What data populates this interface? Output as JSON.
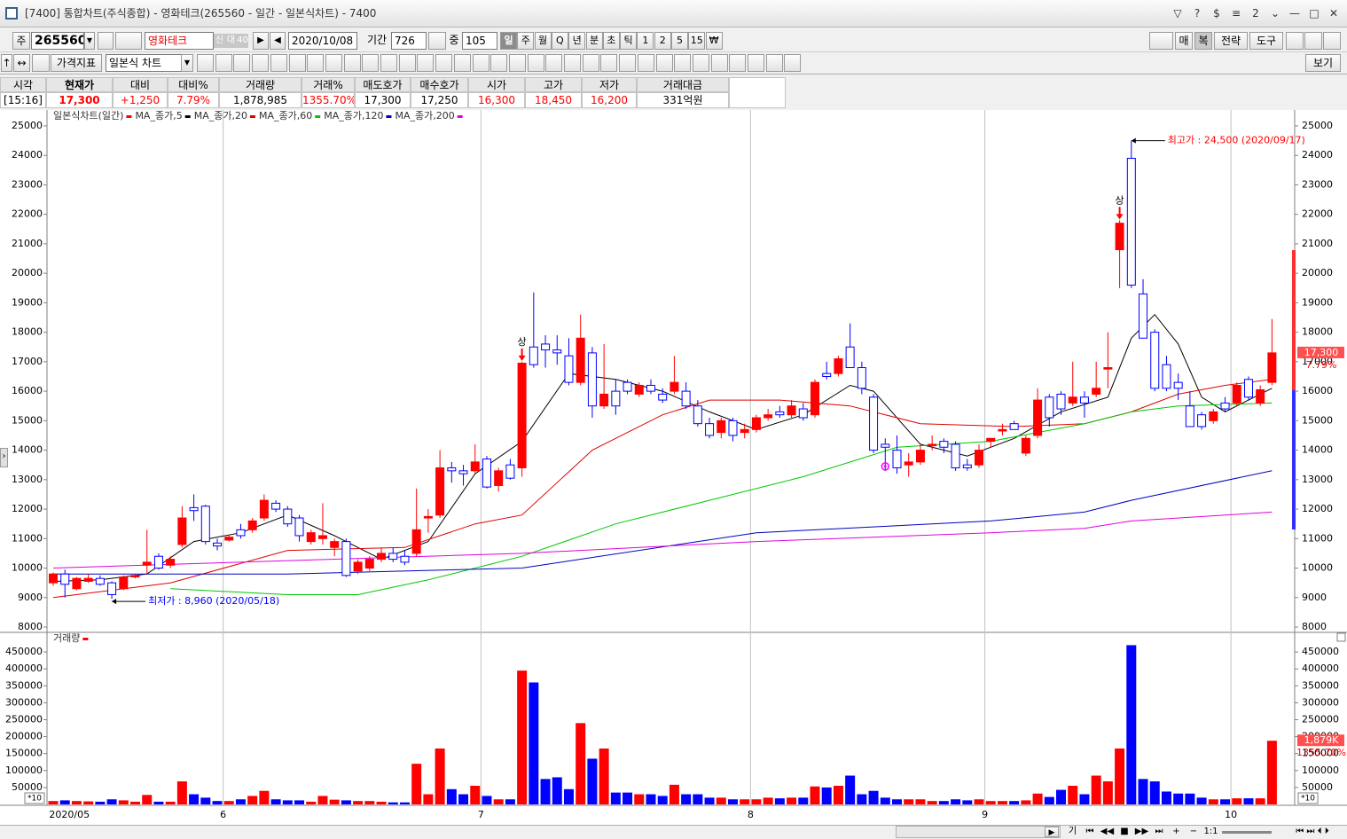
{
  "window": {
    "title": "[7400]  통합차트(주식종합) - 영화테크(265560 - 일간 - 일본식차트) - 7400",
    "buttons": [
      "▽",
      "?",
      "$",
      "≡",
      "2",
      "⌄",
      "—",
      "□",
      "✕"
    ]
  },
  "toolbar": {
    "code_label": "주",
    "code": "265560",
    "name": "영화테크",
    "badges": [
      "신",
      "대",
      "40"
    ],
    "date": "2020/10/08",
    "period_label": "기간",
    "period": "726",
    "count_label": "중",
    "count": "105",
    "intervals": [
      "일",
      "주",
      "월",
      "Q",
      "년",
      "분",
      "초",
      "틱",
      "1",
      "2",
      "5",
      "15",
      "₩"
    ],
    "right_buttons": [
      "매",
      "복",
      "전략",
      "도구"
    ]
  },
  "toolbar2": {
    "indicator": "가격지표",
    "chart_type": "일본식 차트",
    "view": "보기"
  },
  "quote": {
    "headers": [
      "시각",
      "현재가",
      "대비",
      "대비%",
      "거래량",
      "거래%",
      "매도호가",
      "매수호가",
      "시가",
      "고가",
      "저가",
      "거래대금"
    ],
    "values": [
      "[15:16]",
      "17,300",
      "+1,250",
      "7.79%",
      "1,878,985",
      "1355.70%",
      "17,300",
      "17,250",
      "16,300",
      "18,450",
      "16,200",
      "331억원"
    ],
    "colors": [
      "#000000",
      "#ff0000",
      "#ff0000",
      "#ff0000",
      "#000000",
      "#ff0000",
      "#000000",
      "#000000",
      "#ff0000",
      "#ff0000",
      "#ff0000",
      "#000000"
    ]
  },
  "chart_data": {
    "type": "candlestick",
    "title": "일본식차트(일간)",
    "up_color": "#ff0000",
    "down_color": "#0000ff",
    "open": [
      9500,
      9800,
      9300,
      9550,
      9650,
      9500,
      9300,
      9700,
      10100,
      10400,
      10100,
      10800,
      12050,
      12100,
      10850,
      10950,
      11300,
      11300,
      11700,
      12200,
      12000,
      11700,
      10900,
      11000,
      10700,
      10900,
      9900,
      10000,
      10300,
      10500,
      10400,
      10500,
      11700,
      11800,
      13400,
      13300,
      13300,
      13700,
      12800,
      13500,
      13400,
      17500,
      17600,
      17400,
      17200,
      16300,
      17300,
      15500,
      16000,
      16300,
      15900,
      16200,
      15900,
      16000,
      16000,
      15500,
      14900,
      14600,
      15000,
      14600,
      14700,
      15100,
      15300,
      15200,
      15400,
      15200,
      16600,
      16600,
      17500,
      16800,
      15800,
      14200,
      14000,
      13500,
      13600,
      14150,
      14300,
      14200,
      13500,
      13500,
      14300,
      14650,
      14900,
      13900,
      14500,
      15800,
      15900,
      15600,
      15800,
      15900,
      16750,
      20800,
      23900,
      19300,
      18000,
      16900,
      16300,
      15500,
      15200,
      15000,
      15600,
      15600,
      16400,
      15600,
      16300
    ],
    "high": [
      9850,
      9950,
      9700,
      9800,
      9750,
      9550,
      9750,
      9800,
      11300,
      10500,
      10400,
      12100,
      12500,
      12150,
      11000,
      11100,
      11500,
      11700,
      12500,
      12300,
      12100,
      11800,
      11300,
      12200,
      11000,
      11000,
      10300,
      10400,
      10700,
      10700,
      10600,
      12700,
      12000,
      14000,
      13600,
      13500,
      14200,
      13800,
      13400,
      13700,
      17000,
      19350,
      17900,
      17900,
      17800,
      18600,
      17500,
      17600,
      16400,
      16400,
      16300,
      16400,
      16100,
      17200,
      16300,
      15700,
      15100,
      15100,
      15100,
      14900,
      15200,
      15400,
      15500,
      15700,
      15600,
      16400,
      17000,
      17200,
      18300,
      17000,
      15900,
      14400,
      14500,
      13900,
      14200,
      14500,
      14400,
      14300,
      13700,
      14200,
      14400,
      14900,
      15000,
      14500,
      16100,
      15900,
      16000,
      17000,
      16000,
      17000,
      18000,
      21800,
      24500,
      19800,
      18100,
      17200,
      16600,
      16000,
      15300,
      15400,
      15800,
      16300,
      16500,
      16200,
      18450
    ],
    "low": [
      9400,
      9000,
      9250,
      9500,
      9400,
      8960,
      9250,
      9650,
      9800,
      9950,
      10000,
      10700,
      11600,
      10800,
      10600,
      10900,
      11000,
      11200,
      11600,
      11900,
      11400,
      10900,
      10800,
      10800,
      10400,
      9700,
      9800,
      9900,
      10200,
      10200,
      10100,
      10400,
      11200,
      11700,
      12900,
      12800,
      13200,
      12700,
      12600,
      13000,
      13100,
      16800,
      16800,
      16900,
      16200,
      16200,
      15100,
      15400,
      15200,
      15900,
      15800,
      15900,
      15600,
      15900,
      15400,
      14800,
      14400,
      14400,
      14300,
      14400,
      14600,
      15000,
      15100,
      15100,
      15000,
      15100,
      16400,
      16500,
      16800,
      15900,
      13900,
      13300,
      13200,
      13100,
      13500,
      14000,
      13900,
      13300,
      13300,
      13400,
      14100,
      14500,
      14700,
      13800,
      14400,
      14800,
      15200,
      15500,
      15100,
      15800,
      16100,
      19500,
      19500,
      17800,
      16000,
      16000,
      15700,
      14800,
      14700,
      14900,
      15300,
      15500,
      15700,
      15500,
      16200
    ],
    "close": [
      9800,
      9450,
      9650,
      9650,
      9450,
      9100,
      9700,
      9750,
      10200,
      10000,
      10300,
      11700,
      11950,
      10900,
      10750,
      11050,
      11100,
      11600,
      12300,
      12000,
      11500,
      11100,
      11200,
      11100,
      10900,
      9750,
      10200,
      10300,
      10500,
      10300,
      10200,
      11300,
      11750,
      13400,
      13300,
      13200,
      13600,
      12750,
      13300,
      13050,
      16950,
      16900,
      17400,
      17300,
      16300,
      17800,
      15500,
      15900,
      15500,
      16000,
      16200,
      16000,
      15700,
      16300,
      15500,
      14900,
      14500,
      15000,
      14500,
      14700,
      15100,
      15200,
      15200,
      15500,
      15100,
      16300,
      16500,
      17100,
      16800,
      16100,
      14000,
      14100,
      13400,
      13600,
      14000,
      14200,
      14100,
      13400,
      13400,
      14000,
      14400,
      14700,
      14700,
      14400,
      15700,
      15100,
      15400,
      15800,
      15600,
      16100,
      16800,
      21700,
      19600,
      17800,
      16100,
      16100,
      16100,
      14800,
      14800,
      15300,
      15400,
      16200,
      15800,
      16050,
      17300
    ],
    "xlim": [
      -0.5,
      104.5
    ],
    "xticks": [
      {
        "value": -0.5,
        "label": "2020/05"
      },
      {
        "value": 14.5,
        "label": "6"
      },
      {
        "value": 36.5,
        "label": "7"
      },
      {
        "value": 59.5,
        "label": "8"
      },
      {
        "value": 79.5,
        "label": "9"
      },
      {
        "value": 100.5,
        "label": "10"
      }
    ],
    "ylim": [
      7850,
      25480
    ],
    "yticks": [
      25000,
      24000,
      23000,
      22000,
      21000,
      20000,
      19000,
      18000,
      17000,
      16000,
      15000,
      14000,
      13000,
      12000,
      11000,
      10000,
      9000,
      8000
    ],
    "moving_averages": [
      {
        "name": "MA_종가,5",
        "color": "#000000",
        "x": [
          0,
          4,
          8,
          12,
          16,
          20,
          24,
          28,
          32,
          36,
          40,
          44,
          48,
          52,
          56,
          60,
          64,
          68,
          70,
          74,
          78,
          82,
          86,
          90,
          92,
          94,
          96,
          98,
          100,
          104
        ],
        "values": [
          9550,
          9600,
          9800,
          10900,
          11200,
          11800,
          11100,
          10300,
          10900,
          13200,
          14300,
          16600,
          16400,
          16000,
          15300,
          14700,
          15200,
          16200,
          16000,
          14200,
          13800,
          14400,
          15300,
          15800,
          17800,
          18600,
          17600,
          15800,
          15300,
          16100
        ]
      },
      {
        "name": "MA_종가,20",
        "color": "#e00000",
        "x": [
          0,
          10,
          20,
          30,
          36,
          40,
          46,
          52,
          56,
          62,
          68,
          74,
          82,
          88,
          92,
          96,
          100,
          104
        ],
        "values": [
          9000,
          9500,
          10600,
          10700,
          11500,
          11800,
          14000,
          15200,
          15700,
          15700,
          15500,
          14900,
          14800,
          14900,
          15300,
          15900,
          16200,
          16400
        ]
      },
      {
        "name": "MA_종가,60",
        "color": "#00c800",
        "x": [
          10,
          20,
          26,
          32,
          40,
          48,
          56,
          64,
          72,
          80,
          88,
          92,
          96,
          104
        ],
        "values": [
          9300,
          9100,
          9100,
          9600,
          10400,
          11500,
          12300,
          13100,
          14100,
          14300,
          14900,
          15300,
          15500,
          15600
        ]
      },
      {
        "name": "MA_종가,120",
        "color": "#0000c0",
        "x": [
          0,
          20,
          40,
          60,
          80,
          88,
          92,
          104
        ],
        "values": [
          9800,
          9800,
          10000,
          11200,
          11600,
          11900,
          12300,
          13300
        ]
      },
      {
        "name": "MA_종가,200",
        "color": "#e000e0",
        "x": [
          0,
          40,
          60,
          80,
          88,
          92,
          104
        ],
        "values": [
          10000,
          10500,
          10900,
          11200,
          11350,
          11600,
          11900
        ]
      }
    ],
    "annotations": [
      {
        "text": "최고가 : 24,500 (2020/09/17)",
        "index": 92,
        "value": 24500,
        "color": "#ff0000"
      },
      {
        "text": "최저가 : 8,960 (2020/05/18)",
        "index": 5,
        "value": 8960,
        "color": "#0000ff"
      },
      {
        "text": "상",
        "index": 40,
        "value": 17000,
        "color": "#ff0000"
      },
      {
        "text": "상",
        "index": 91,
        "value": 21800,
        "color": "#ff0000"
      }
    ],
    "signals": [
      {
        "index": 71,
        "value": 13450,
        "color": "#ff00ff"
      }
    ],
    "last_price_label": "17,300",
    "last_change_label": "7.79%",
    "volume": {
      "title": "거래량",
      "values": [
        10000,
        12000,
        10000,
        9000,
        8000,
        15000,
        12000,
        8000,
        28000,
        8000,
        8000,
        68000,
        30000,
        20000,
        10000,
        10000,
        15000,
        25000,
        40000,
        15000,
        12000,
        12000,
        8000,
        25000,
        14000,
        12000,
        10000,
        10000,
        8000,
        6000,
        6000,
        120000,
        30000,
        165000,
        45000,
        30000,
        55000,
        25000,
        15000,
        15000,
        395000,
        360000,
        75000,
        80000,
        45000,
        240000,
        135000,
        165000,
        35000,
        35000,
        30000,
        30000,
        25000,
        58000,
        30000,
        30000,
        20000,
        20000,
        15000,
        15000,
        15000,
        20000,
        18000,
        20000,
        20000,
        53000,
        50000,
        55000,
        85000,
        30000,
        40000,
        20000,
        15000,
        15000,
        15000,
        10000,
        10000,
        15000,
        12000,
        15000,
        10000,
        10000,
        10000,
        12000,
        32000,
        22000,
        43000,
        55000,
        30000,
        85000,
        68000,
        165000,
        470000,
        75000,
        68000,
        38000,
        32000,
        32000,
        20000,
        15000,
        15000,
        18000,
        18000,
        18000,
        187900
      ],
      "ylim": [
        0,
        500000
      ],
      "yticks": [
        450000,
        400000,
        350000,
        300000,
        250000,
        200000,
        150000,
        100000,
        50000
      ],
      "unit_label": "*10",
      "last_label": "1,879K",
      "last_pct_label": "1355.70%"
    }
  },
  "bottom_bar": {
    "controls": [
      "기",
      "⏮",
      "◀◀",
      "■",
      "▶▶",
      "⏭",
      "+",
      "−",
      "1:1"
    ]
  }
}
